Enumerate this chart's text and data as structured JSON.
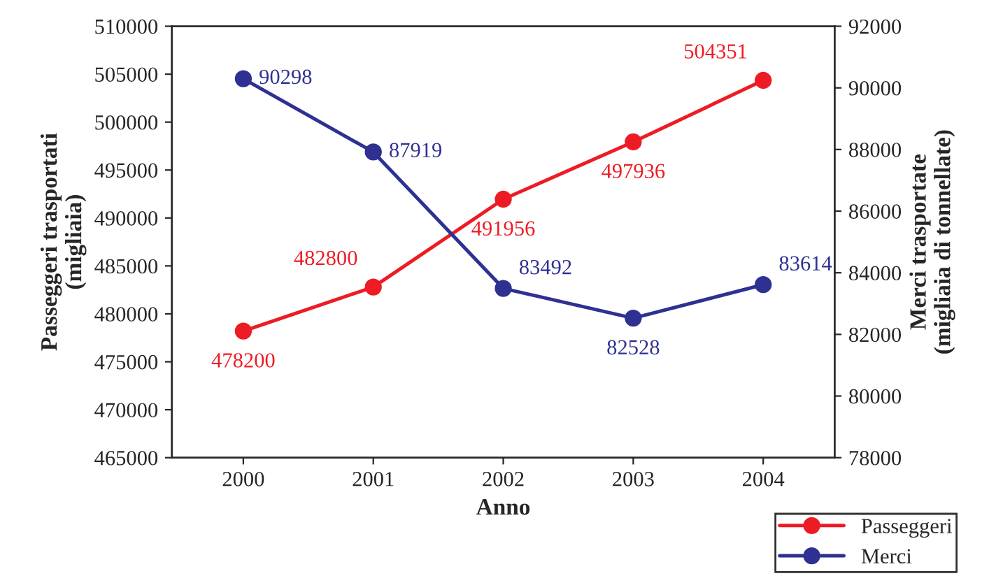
{
  "chart_data": {
    "type": "line",
    "xlabel": "Anno",
    "ylabel": "Passeggeri trasportati\n(migliaia)",
    "y2label": "Merci trasportate\n(migliaia di tonnellate)",
    "categories": [
      "2000",
      "2001",
      "2002",
      "2003",
      "2004"
    ],
    "series": [
      {
        "name": "Passeggeri",
        "color": "#ed1c24",
        "values": [
          478200,
          482800,
          491956,
          497936,
          504351
        ]
      },
      {
        "name": "Merci",
        "color": "#2e3192",
        "axis": "y2",
        "values": [
          90298,
          87919,
          83492,
          82528,
          83614
        ]
      }
    ],
    "ylim": [
      465000,
      510000
    ],
    "yticks": [
      465000,
      470000,
      475000,
      480000,
      485000,
      490000,
      495000,
      500000,
      505000,
      510000
    ],
    "y2lim": [
      78000,
      92000
    ],
    "y2ticks": [
      78000,
      80000,
      82000,
      84000,
      86000,
      88000,
      90000,
      92000
    ],
    "data_labels": true,
    "marker": "circle",
    "line_style": "solid",
    "legend": "bottom right",
    "grid": false
  }
}
